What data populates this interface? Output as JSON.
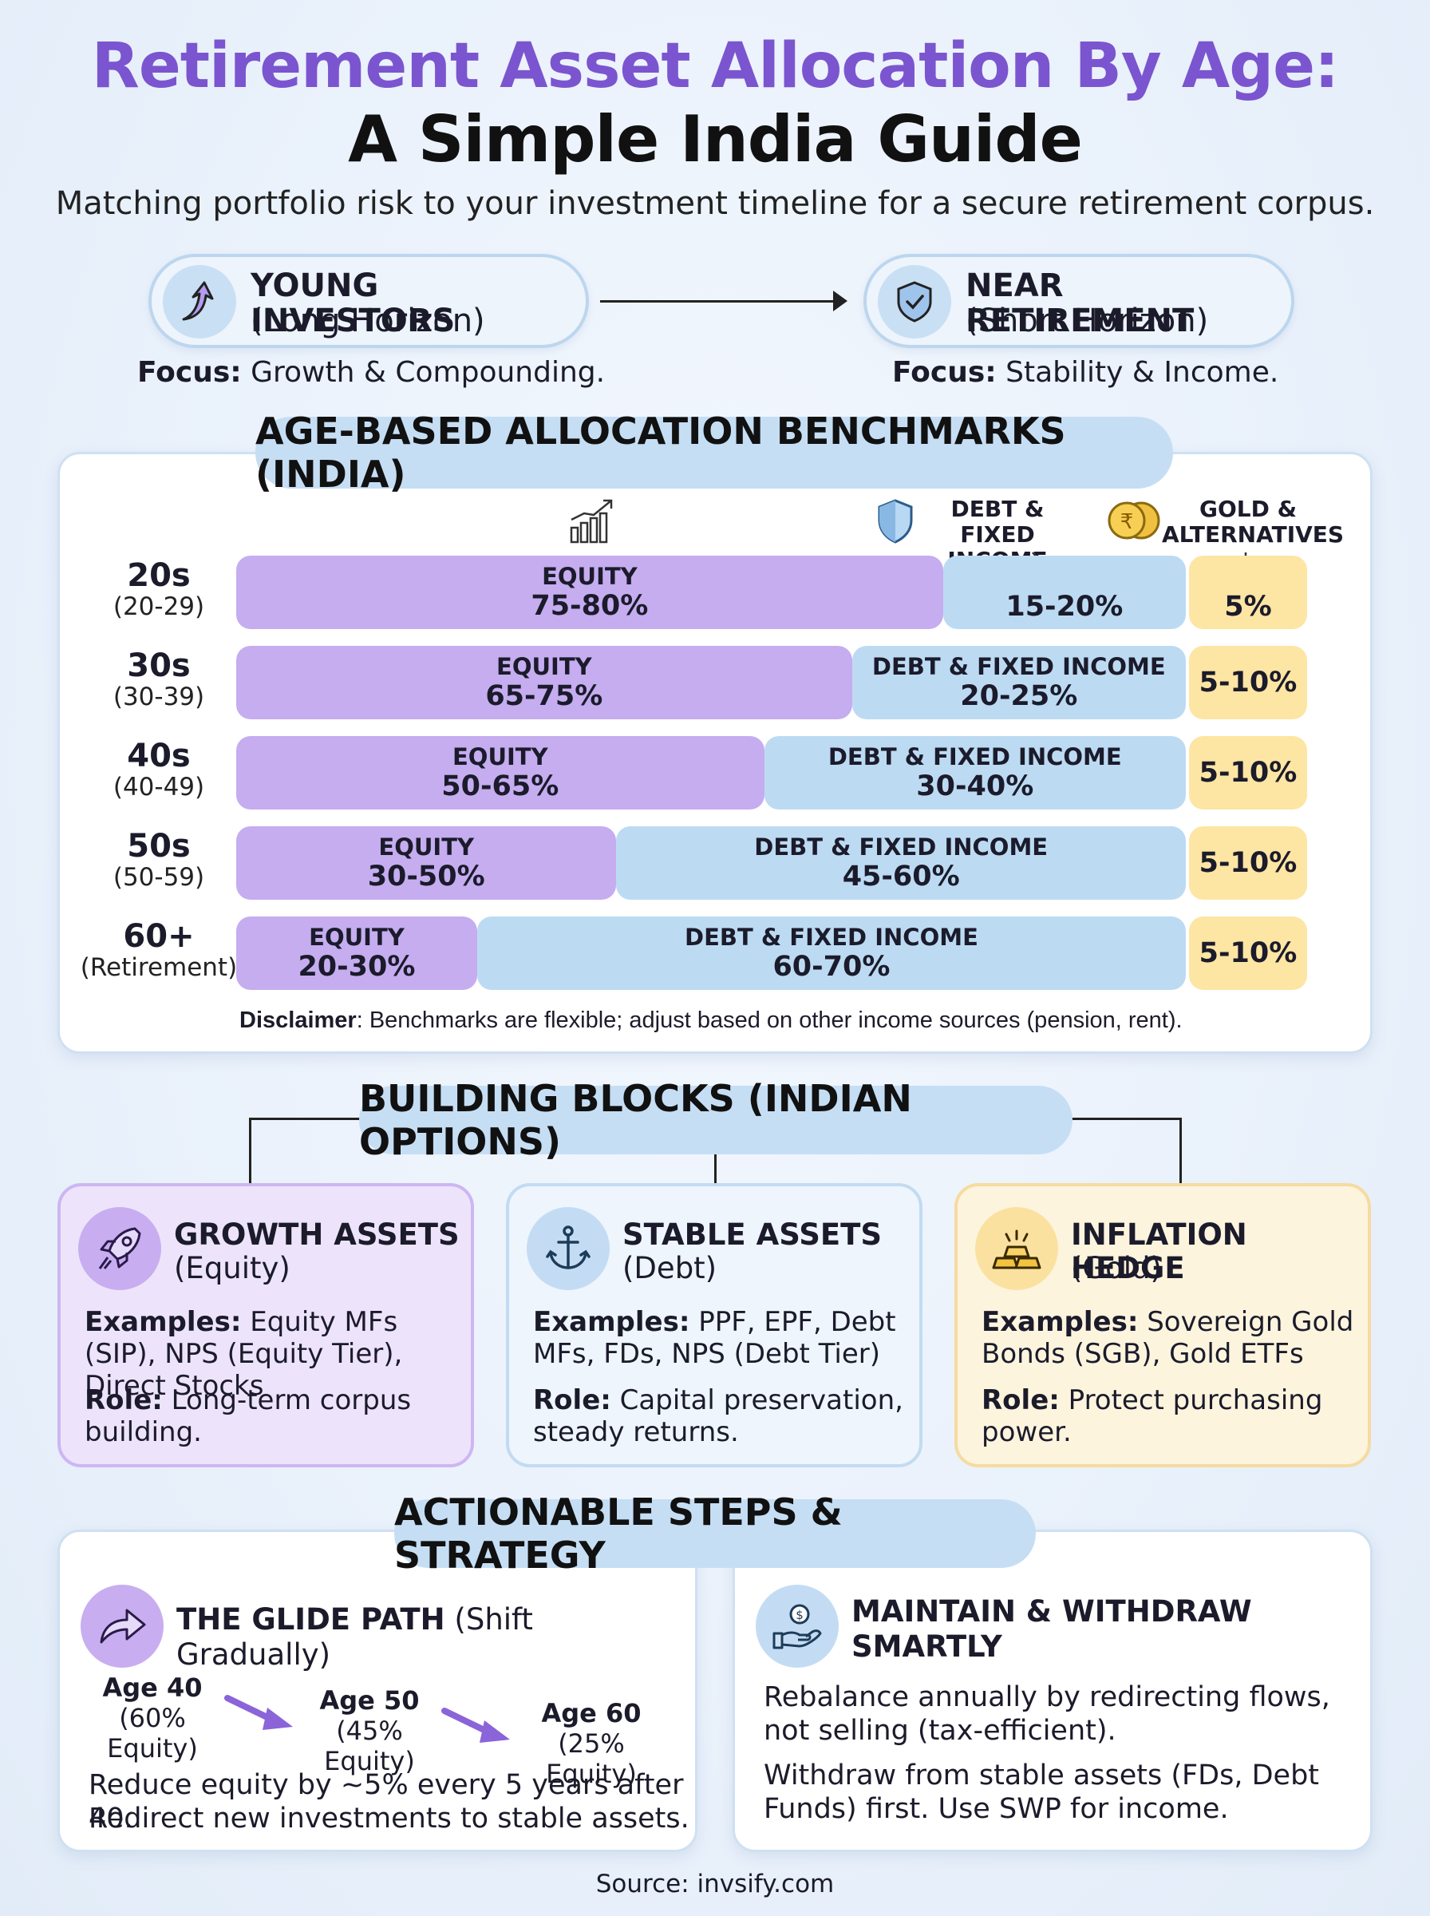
{
  "header": {
    "title_line1": "Retirement Asset Allocation By Age:",
    "title_line2": "A Simple India Guide",
    "subtitle": "Matching portfolio risk to your investment timeline for a secure retirement corpus."
  },
  "horizons": {
    "young": {
      "title": "YOUNG INVESTORS",
      "sub": "(Long Horizon)",
      "focus_label": "Focus:",
      "focus_text": " Growth & Compounding.",
      "icon": "arrow-up-icon"
    },
    "near": {
      "title": "NEAR RETIREMENT",
      "sub": "(Short Horizon)",
      "focus_label": "Focus:",
      "focus_text": " Stability & Income.",
      "icon": "shield-check-icon"
    }
  },
  "benchmarks": {
    "title": "AGE-BASED ALLOCATION BENCHMARKS (INDIA)",
    "legend": {
      "equity_icon": "bar-chart-growth-icon",
      "debt": {
        "line1": "DEBT & FIXED",
        "line2": "INCOME",
        "icon": "shield-icon"
      },
      "gold": {
        "line1": "GOLD &",
        "line2": "ALTERNATIVES",
        "icon": "rupee-coins-icon"
      }
    },
    "rows": [
      {
        "age": "20s",
        "range": "(20-29)",
        "equity_label": "EQUITY",
        "equity": "75-80%",
        "equity_pct": 66,
        "debt_label": "",
        "debt": "15-20%",
        "debt_pct": 20,
        "gold": "5%"
      },
      {
        "age": "30s",
        "range": "(30-39)",
        "equity_label": "EQUITY",
        "equity": "65-75%",
        "equity_pct": 57.5,
        "debt_label": "DEBT & FIXED INCOME",
        "debt": "20-25%",
        "debt_pct": 28.5,
        "gold": "5-10%"
      },
      {
        "age": "40s",
        "range": "(40-49)",
        "equity_label": "EQUITY",
        "equity": "50-65%",
        "equity_pct": 49.3,
        "debt_label": "DEBT & FIXED INCOME",
        "debt": "30-40%",
        "debt_pct": 36.7,
        "gold": "5-10%"
      },
      {
        "age": "50s",
        "range": "(50-59)",
        "equity_label": "EQUITY",
        "equity": "30-50%",
        "equity_pct": 35.5,
        "debt_label": "DEBT & FIXED INCOME",
        "debt": "45-60%",
        "debt_pct": 50.5,
        "gold": "5-10%"
      },
      {
        "age": "60+",
        "range": "(Retirement)",
        "equity_label": "EQUITY",
        "equity": "20-30%",
        "equity_pct": 22.5,
        "debt_label": "DEBT & FIXED INCOME",
        "debt": "60-70%",
        "debt_pct": 63.5,
        "gold": "5-10%"
      }
    ],
    "disclaimer_label": "Disclaimer",
    "disclaimer_text": ": Benchmarks are flexible; adjust based on other income sources (pension, rent)."
  },
  "building_blocks": {
    "title": "BUILDING BLOCKS (INDIAN OPTIONS)",
    "cards": [
      {
        "title": "GROWTH ASSETS",
        "sub": "(Equity)",
        "ex_label": "Examples:",
        "ex_text": " Equity MFs (SIP), NPS (Equity Tier), Direct Stocks",
        "role_label": "Role:",
        "role_text": " Long-term corpus building.",
        "icon": "rocket-icon"
      },
      {
        "title": "STABLE ASSETS",
        "sub": "(Debt)",
        "ex_label": "Examples:",
        "ex_text": " PPF, EPF, Debt MFs, FDs, NPS (Debt Tier)",
        "role_label": "Role:",
        "role_text": " Capital preservation, steady returns.",
        "icon": "anchor-icon"
      },
      {
        "title": "INFLATION HEDGE",
        "sub": "(Gold)",
        "ex_label": "Examples:",
        "ex_text": " Sovereign Gold Bonds (SGB), Gold ETFs",
        "role_label": "Role:",
        "role_text": " Protect purchasing power.",
        "icon": "gold-bars-icon"
      }
    ]
  },
  "steps": {
    "title": "ACTIONABLE STEPS & STRATEGY",
    "glide": {
      "title": "THE GLIDE PATH",
      "title_suffix": " (Shift Gradually)",
      "icon": "curved-arrow-icon",
      "points": [
        {
          "age": "Age 40",
          "pct": "(60% Equity)"
        },
        {
          "age": "Age 50",
          "pct": "(45% Equity)"
        },
        {
          "age": "Age 60",
          "pct": "(25% Equity)"
        }
      ],
      "text1": "Reduce equity by ~5% every 5 years after 40.",
      "text2": "Redirect new investments to stable assets."
    },
    "maintain": {
      "title_line1": "MAINTAIN & WITHDRAW",
      "title_line2": "SMARTLY",
      "icon": "hand-coin-icon",
      "text1": "Rebalance annually by redirecting flows, not selling (tax-efficient).",
      "text2": "Withdraw from stable assets (FDs, Debt Funds) first. Use SWP for income."
    }
  },
  "footer": {
    "source": "Source: invsify.com"
  },
  "colors": {
    "accent_purple": "#7b55cf",
    "equity": "#c5adf0",
    "debt": "#bcdbf3",
    "gold": "#fde5a3"
  }
}
